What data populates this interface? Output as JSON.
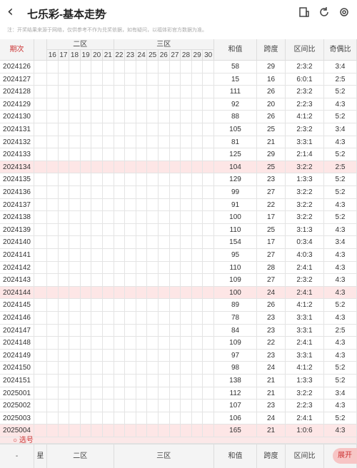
{
  "header": {
    "title": "七乐彩-基本走势",
    "back_icon": "back-icon",
    "chevron": "chevron-down-icon"
  },
  "note": "注：开奖结果来源于网络，仅供参考不作为兑奖依据，如有疑问，以福体彩官方数据为准。",
  "columns": {
    "period": "期次",
    "zone2": "二区",
    "zone3": "三区",
    "sum": "和值",
    "span": "跨度",
    "interval": "区间比",
    "odd_even": "奇偶比"
  },
  "numbers": [
    "16",
    "17",
    "18",
    "19",
    "20",
    "21",
    "22",
    "23",
    "24",
    "25",
    "26",
    "27",
    "28",
    "29",
    "30"
  ],
  "rows": [
    {
      "period": "2024126",
      "sum": "58",
      "span": "29",
      "interval": "2:3:2",
      "oe": "3:4",
      "hl": false
    },
    {
      "period": "2024127",
      "sum": "15",
      "span": "16",
      "interval": "6:0:1",
      "oe": "2:5",
      "hl": false
    },
    {
      "period": "2024128",
      "sum": "111",
      "span": "26",
      "interval": "2:3:2",
      "oe": "5:2",
      "hl": false
    },
    {
      "period": "2024129",
      "sum": "92",
      "span": "20",
      "interval": "2:2:3",
      "oe": "4:3",
      "hl": false
    },
    {
      "period": "2024130",
      "sum": "88",
      "span": "26",
      "interval": "4:1:2",
      "oe": "5:2",
      "hl": false
    },
    {
      "period": "2024131",
      "sum": "105",
      "span": "25",
      "interval": "2:3:2",
      "oe": "3:4",
      "hl": false
    },
    {
      "period": "2024132",
      "sum": "81",
      "span": "21",
      "interval": "3:3:1",
      "oe": "4:3",
      "hl": false
    },
    {
      "period": "2024133",
      "sum": "125",
      "span": "29",
      "interval": "2:1:4",
      "oe": "5:2",
      "hl": false
    },
    {
      "period": "2024134",
      "sum": "104",
      "span": "25",
      "interval": "3:2:2",
      "oe": "2:5",
      "hl": true
    },
    {
      "period": "2024135",
      "sum": "129",
      "span": "23",
      "interval": "1:3:3",
      "oe": "5:2",
      "hl": false
    },
    {
      "period": "2024136",
      "sum": "99",
      "span": "27",
      "interval": "3:2:2",
      "oe": "5:2",
      "hl": false
    },
    {
      "period": "2024137",
      "sum": "91",
      "span": "22",
      "interval": "3:2:2",
      "oe": "4:3",
      "hl": false
    },
    {
      "period": "2024138",
      "sum": "100",
      "span": "17",
      "interval": "3:2:2",
      "oe": "5:2",
      "hl": false
    },
    {
      "period": "2024139",
      "sum": "110",
      "span": "25",
      "interval": "3:1:3",
      "oe": "4:3",
      "hl": false
    },
    {
      "period": "2024140",
      "sum": "154",
      "span": "17",
      "interval": "0:3:4",
      "oe": "3:4",
      "hl": false
    },
    {
      "period": "2024141",
      "sum": "95",
      "span": "27",
      "interval": "4:0:3",
      "oe": "4:3",
      "hl": false
    },
    {
      "period": "2024142",
      "sum": "110",
      "span": "28",
      "interval": "2:4:1",
      "oe": "4:3",
      "hl": false
    },
    {
      "period": "2024143",
      "sum": "109",
      "span": "27",
      "interval": "2:3:2",
      "oe": "4:3",
      "hl": false
    },
    {
      "period": "2024144",
      "sum": "100",
      "span": "24",
      "interval": "2:4:1",
      "oe": "4:3",
      "hl": true
    },
    {
      "period": "2024145",
      "sum": "89",
      "span": "26",
      "interval": "4:1:2",
      "oe": "5:2",
      "hl": false
    },
    {
      "period": "2024146",
      "sum": "78",
      "span": "23",
      "interval": "3:3:1",
      "oe": "4:3",
      "hl": false
    },
    {
      "period": "2024147",
      "sum": "84",
      "span": "23",
      "interval": "3:3:1",
      "oe": "2:5",
      "hl": false
    },
    {
      "period": "2024148",
      "sum": "109",
      "span": "22",
      "interval": "2:4:1",
      "oe": "4:3",
      "hl": false
    },
    {
      "period": "2024149",
      "sum": "97",
      "span": "23",
      "interval": "3:3:1",
      "oe": "4:3",
      "hl": false
    },
    {
      "period": "2024150",
      "sum": "98",
      "span": "24",
      "interval": "4:1:2",
      "oe": "5:2",
      "hl": false
    },
    {
      "period": "2024151",
      "sum": "138",
      "span": "21",
      "interval": "1:3:3",
      "oe": "5:2",
      "hl": false
    },
    {
      "period": "2025001",
      "sum": "112",
      "span": "21",
      "interval": "3:2:2",
      "oe": "3:4",
      "hl": false
    },
    {
      "period": "2025002",
      "sum": "107",
      "span": "23",
      "interval": "2:2:3",
      "oe": "4:3",
      "hl": false
    },
    {
      "period": "2025003",
      "sum": "106",
      "span": "24",
      "interval": "2:4:1",
      "oe": "5:2",
      "hl": false
    },
    {
      "period": "2025004",
      "sum": "165",
      "span": "21",
      "interval": "1:0:6",
      "oe": "4:3",
      "hl": true
    }
  ],
  "select_label": "选号",
  "footer": {
    "period": "-",
    "star": "星",
    "zone2": "二区",
    "zone3": "三区",
    "sum": "和值",
    "span": "跨度",
    "interval": "区间比",
    "oe": "奇"
  },
  "expand_button": "展开",
  "colors": {
    "red": "#e24a4a",
    "dark": "#a52b2b",
    "blue": "#4b73c9",
    "highlight": "#fde6e6"
  }
}
